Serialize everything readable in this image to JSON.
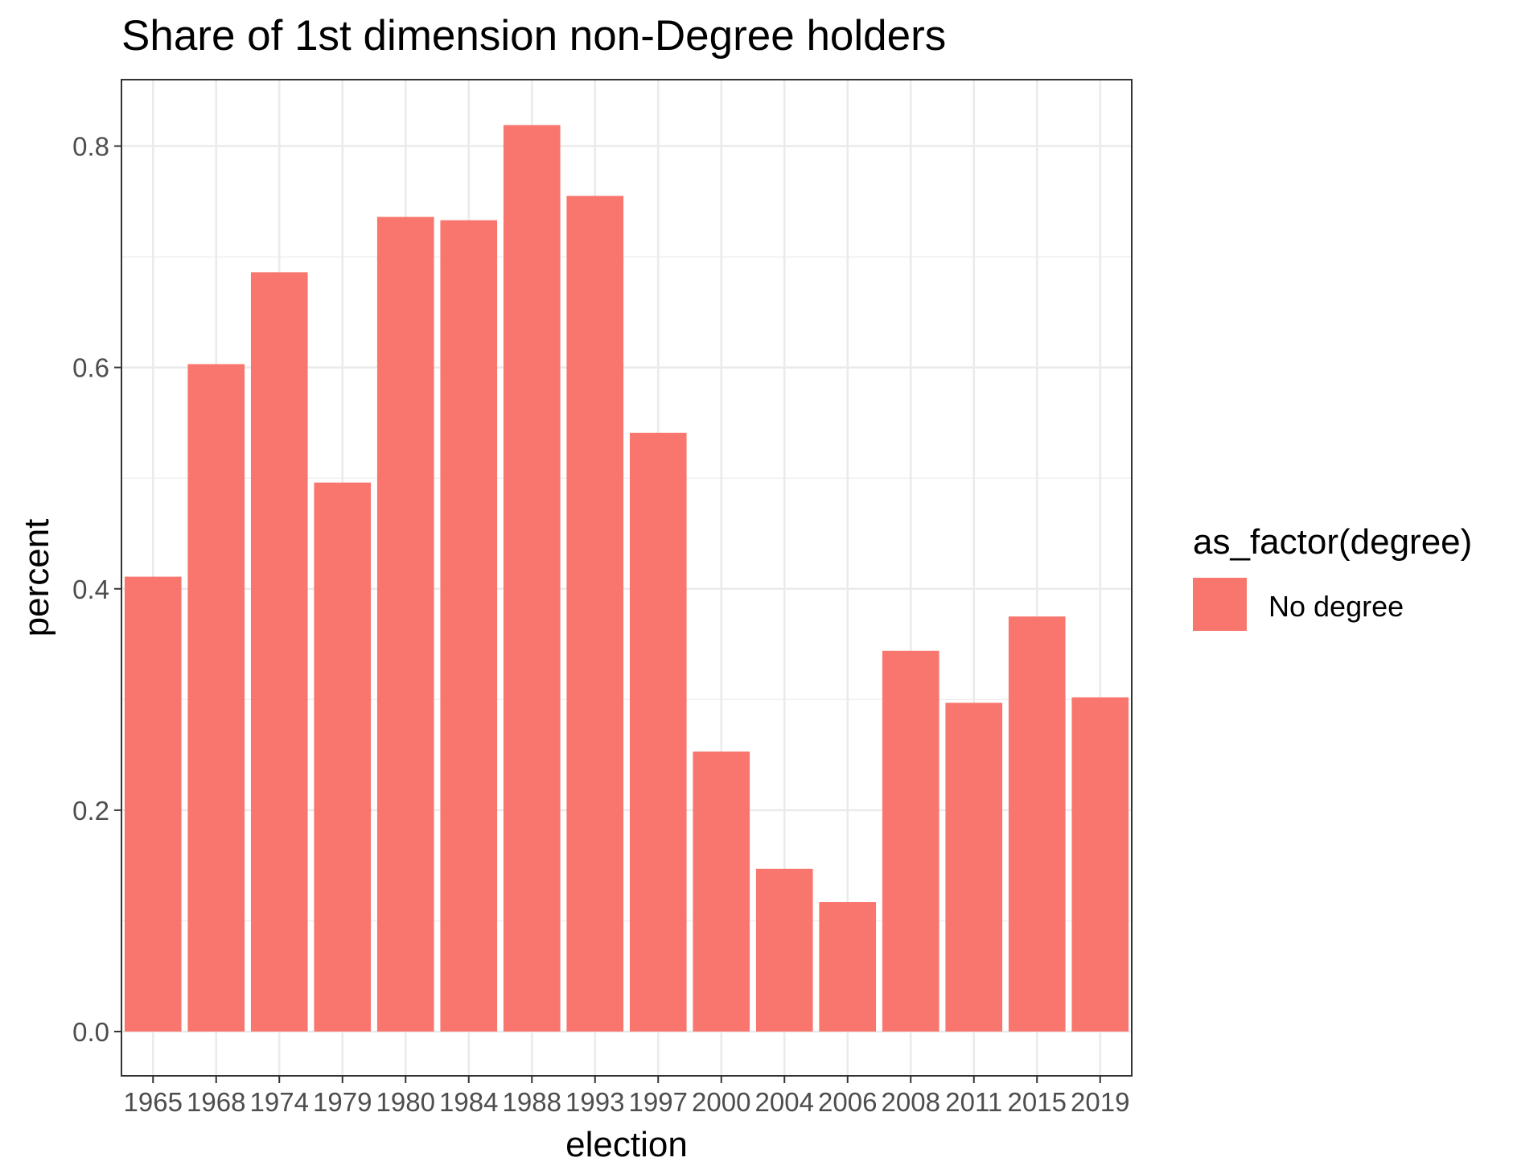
{
  "chart_data": {
    "type": "bar",
    "title": "Share of 1st dimension non-Degree holders",
    "xlabel": "election",
    "ylabel": "percent",
    "categories": [
      "1965",
      "1968",
      "1974",
      "1979",
      "1980",
      "1984",
      "1988",
      "1993",
      "1997",
      "2000",
      "2004",
      "2006",
      "2008",
      "2011",
      "2015",
      "2019"
    ],
    "series": [
      {
        "name": "No degree",
        "values": [
          0.411,
          0.603,
          0.686,
          0.496,
          0.736,
          0.733,
          0.819,
          0.755,
          0.541,
          0.253,
          0.147,
          0.117,
          0.344,
          0.297,
          0.375,
          0.302
        ]
      }
    ],
    "ylim": [
      -0.04,
      0.86
    ],
    "yticks": [
      0.0,
      0.2,
      0.4,
      0.6,
      0.8
    ],
    "ytick_labels": [
      "0.0",
      "0.2",
      "0.4",
      "0.6",
      "0.8"
    ],
    "grid": true,
    "legend": {
      "title": "as_factor(degree)",
      "position": "right",
      "entries": [
        {
          "label": "No degree",
          "color": "#F8766D"
        }
      ]
    },
    "colors": {
      "bar": "#F8766D",
      "grid": "#EBEBEB",
      "panel_border": "#333333"
    }
  }
}
